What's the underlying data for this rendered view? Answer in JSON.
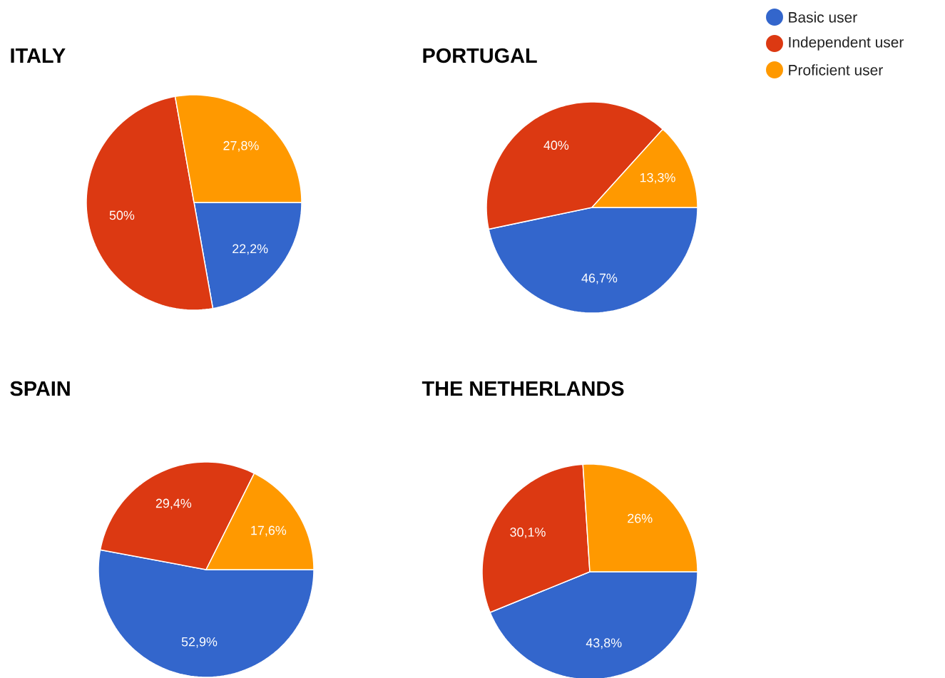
{
  "chart_data": [
    {
      "type": "pie",
      "title": "ITALY",
      "categories": [
        "Basic user",
        "Independent user",
        "Proficient user"
      ],
      "values": [
        22.2,
        50,
        27.8
      ],
      "colors": [
        "#3366cc",
        "#dc3912",
        "#ff9900"
      ],
      "value_labels": [
        "22,2%",
        "50%",
        "27,8%"
      ],
      "legend": "top right"
    },
    {
      "type": "pie",
      "title": "PORTUGAL",
      "categories": [
        null,
        null,
        null
      ],
      "values": [
        46.7,
        40,
        13.3
      ],
      "colors": [
        "#3366cc",
        "#dc3912",
        "#ff9900"
      ],
      "value_labels": [
        "46,7%",
        "40%",
        "13,3%"
      ]
    },
    {
      "type": "pie",
      "title": "SPAIN",
      "categories": [
        null,
        null,
        null
      ],
      "values": [
        52.9,
        29.4,
        17.6
      ],
      "colors": [
        "#3366cc",
        "#dc3912",
        "#ff9900"
      ],
      "value_labels": [
        "52,9%",
        "29,4%",
        "17,6%"
      ]
    },
    {
      "type": "pie",
      "title": "THE NETHERLANDS",
      "categories": [
        null,
        null,
        null
      ],
      "values": [
        43.8,
        30.1,
        26
      ],
      "colors": [
        "#3366cc",
        "#dc3912",
        "#ff9900"
      ],
      "value_labels": [
        "43,8%",
        "30,1%",
        "26%"
      ]
    }
  ]
}
